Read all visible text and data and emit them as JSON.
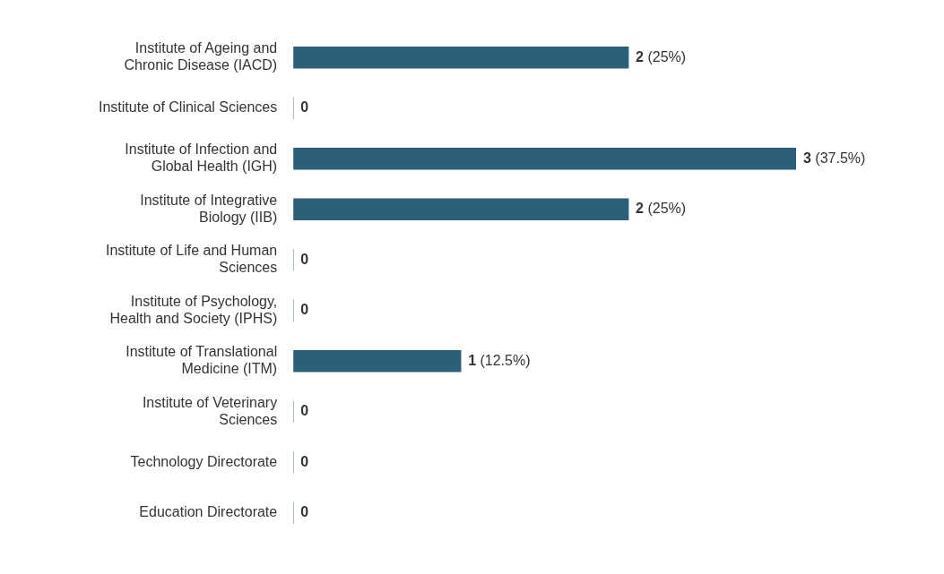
{
  "chart_data": {
    "type": "bar",
    "orientation": "horizontal",
    "categories": [
      "Institute of Ageing and Chronic Disease (IACD)",
      "Institute of Clinical Sciences",
      "Institute of Infection and Global Health (IGH)",
      "Institute of Integrative Biology (IIB)",
      "Institute of Life and Human Sciences",
      "Institute of Psychology, Health and Society (IPHS)",
      "Institute of Translational Medicine (ITM)",
      "Institute of Veterinary Sciences",
      "Technology Directorate",
      "Education Directorate"
    ],
    "values": [
      2,
      0,
      3,
      2,
      0,
      0,
      1,
      0,
      0,
      0
    ],
    "value_labels": [
      "2 (25%)",
      "0",
      "3 (37.5%)",
      "2 (25%)",
      "0",
      "0",
      "1 (12.5%)",
      "0",
      "0",
      "0"
    ],
    "color": "#2d5f78",
    "xlim": [
      0,
      3
    ],
    "tick_labels": "y",
    "legend": false
  }
}
